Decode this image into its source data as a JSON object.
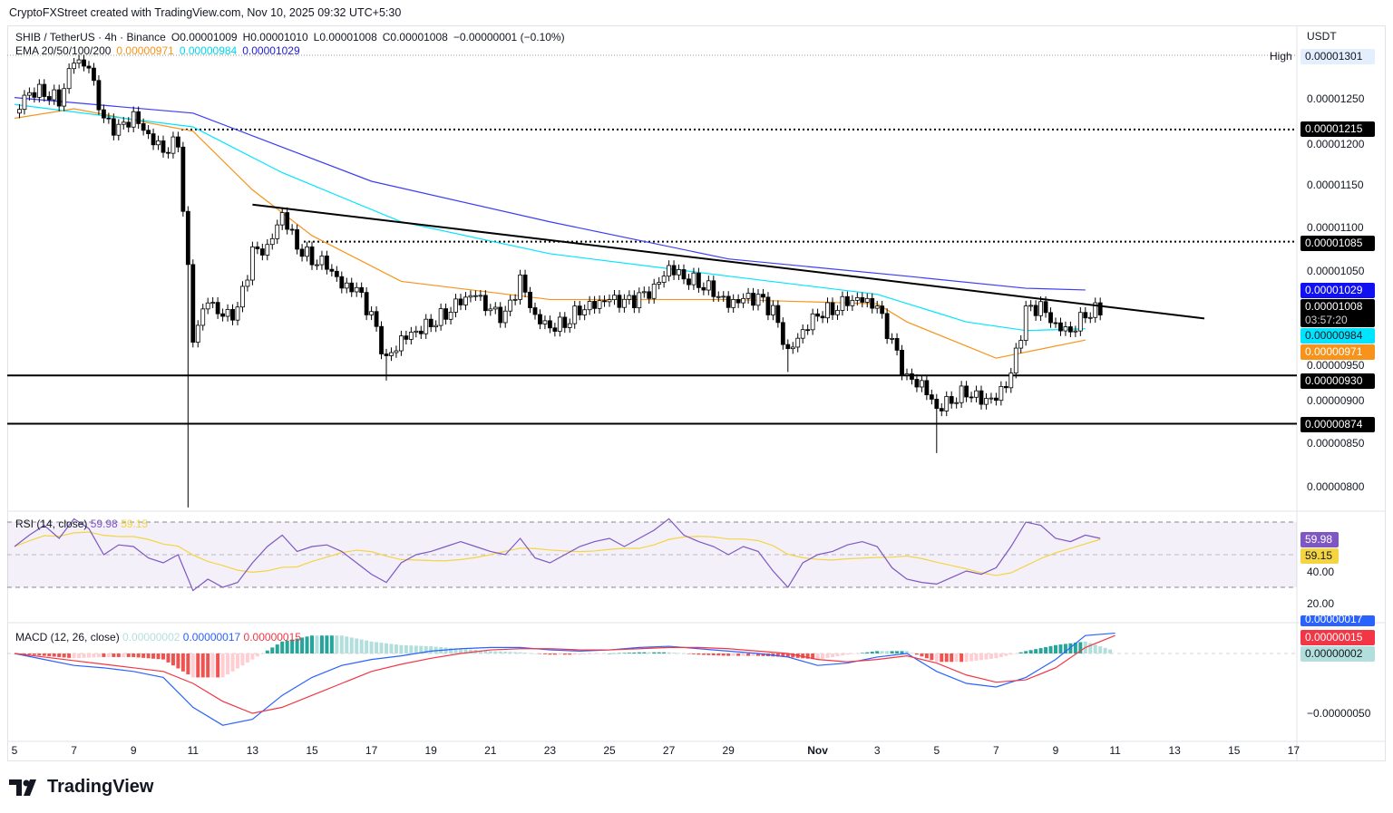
{
  "credit": "CryptoFXStreet created with TradingView.com, Nov 10, 2025 09:32 UTC+5:30",
  "legend": {
    "symbol": "SHIB / TetherUS · 4h · Binance",
    "open": "O0.00001009",
    "high": "H0.00001010",
    "low": "L0.00001008",
    "close": "C0.00001008",
    "change": "−0.00000001 (−0.10%)",
    "ema_label": "EMA 20/50/100/200",
    "ema50": "0.00000971",
    "ema100": "0.00000984",
    "ema200": "0.00001029"
  },
  "currency": "USDT",
  "high_label": "High",
  "rsi_legend": {
    "label": "RSI (14, close)",
    "value": "59.98",
    "ma": "59.15"
  },
  "macd_legend": {
    "label": "MACD (12, 26, close)",
    "hist": "0.00000002",
    "macd": "0.00000017",
    "signal": "0.00000015"
  },
  "price_ticks": [
    "0.00001250",
    "0.00001200",
    "0.00001150",
    "0.00001100",
    "0.00001050",
    "0.00000950",
    "0.00000900",
    "0.00000850",
    "0.00000800"
  ],
  "badges": {
    "high": "0.00001301",
    "r1": "0.00001215",
    "r2": "0.00001085",
    "ema200": "0.00001029",
    "last": "0.00001008",
    "countdown": "03:57:20",
    "ema100": "0.00000984",
    "ema50": "0.00000971",
    "s1": "0.00000930",
    "s2": "0.00000874"
  },
  "rsi_ticks": [
    "40.00",
    "20.00"
  ],
  "rsi_badges": {
    "rsi": "59.98",
    "ma": "59.15"
  },
  "macd_ticks": {
    "macd": "0.00000017",
    "signal": "0.00000015",
    "hist": "0.00000002",
    "low": "−0.00000050"
  },
  "time_labels": [
    "5",
    "7",
    "9",
    "11",
    "13",
    "15",
    "17",
    "19",
    "21",
    "23",
    "25",
    "27",
    "29",
    "Nov",
    "3",
    "5",
    "7",
    "9",
    "11",
    "13",
    "15",
    "17"
  ],
  "logo": "TradingView",
  "colors": {
    "ema50": "#f7931a",
    "ema100": "#00e5ff",
    "ema200": "#3d3df5",
    "rsi": "#7e57c2",
    "rsi_ma": "#f5d442",
    "macd": "#2962ff",
    "signal": "#f23645",
    "hist_up": "#26a69a",
    "hist_down": "#ef5350"
  },
  "chart_data": {
    "type": "candlestick",
    "symbol": "SHIB/USDT",
    "interval": "4h",
    "x_start": "2025-10-05",
    "x_step_hours": 12,
    "closes": [
      1.234e-05,
      1.26e-05,
      1.26e-05,
      1.25e-05,
      1.297e-05,
      1.286e-05,
      1.223e-05,
      1.213e-05,
      1.229e-05,
      1.208e-05,
      1.192e-05,
      1.202e-05,
      9.76e-06,
      1.018e-05,
      9.97e-06,
      1.003e-05,
      1.071e-05,
      1.076e-05,
      1.118e-05,
      1.081e-05,
      1.066e-05,
      1.06e-05,
      1.034e-05,
      1.029e-05,
      9.97e-06,
      9.45e-06,
      9.71e-06,
      9.82e-06,
      9.92e-06,
      1.003e-05,
      1.018e-05,
      1.024e-05,
      1.003e-05,
      9.97e-06,
      1.039e-05,
      9.97e-06,
      9.87e-06,
      9.92e-06,
      1.008e-05,
      1.013e-05,
      1.018e-05,
      1.013e-05,
      1.018e-05,
      1.029e-05,
      1.055e-05,
      1.045e-05,
      1.039e-05,
      1.029e-05,
      1.013e-05,
      1.018e-05,
      1.018e-05,
      1.003e-05,
      9.55e-06,
      9.82e-06,
      1.003e-05,
      1.008e-05,
      1.018e-05,
      1.018e-05,
      1.008e-05,
      9.66e-06,
      9.24e-06,
      9.19e-06,
      8.92e-06,
      9.03e-06,
      9.13e-06,
      9.03e-06,
      9.03e-06,
      9.29e-06,
      1.003e-05,
      1.008e-05,
      9.87e-06,
      9.82e-06,
      1.003e-05,
      1.008e-05
    ],
    "notable_lows": [
      {
        "date": "2025-10-10 20:00",
        "low": 7.77e-06
      },
      {
        "date": "2025-10-17 12:00",
        "low": 9.24e-06
      },
      {
        "date": "2025-10-31 00:00",
        "low": 9.34e-06
      },
      {
        "date": "2025-11-05 00:00",
        "low": 8.4e-06
      }
    ],
    "ema": [
      {
        "name": "EMA 50",
        "color": "#f7931a",
        "points": [
          [
            "2025-10-05",
            1.228e-05
          ],
          [
            "2025-10-07",
            1.239e-05
          ],
          [
            "2025-10-11",
            1.213e-05
          ],
          [
            "2025-10-13",
            1.145e-05
          ],
          [
            "2025-10-15",
            1.092e-05
          ],
          [
            "2025-10-18",
            1.039e-05
          ],
          [
            "2025-10-23",
            1.018e-05
          ],
          [
            "2025-10-29",
            1.018e-05
          ],
          [
            "2025-11-03",
            1.013e-05
          ],
          [
            "2025-11-04",
            9.92e-06
          ],
          [
            "2025-11-07",
            9.5e-06
          ],
          [
            "2025-11-10",
            9.71e-06
          ]
        ]
      },
      {
        "name": "EMA 100",
        "color": "#00e5ff",
        "points": [
          [
            "2025-10-05",
            1.244e-05
          ],
          [
            "2025-10-11",
            1.218e-05
          ],
          [
            "2025-10-14",
            1.165e-05
          ],
          [
            "2025-10-18",
            1.108e-05
          ],
          [
            "2025-10-23",
            1.071e-05
          ],
          [
            "2025-10-29",
            1.045e-05
          ],
          [
            "2025-11-03",
            1.024e-05
          ],
          [
            "2025-11-06",
            9.92e-06
          ],
          [
            "2025-11-08",
            9.82e-06
          ],
          [
            "2025-11-10",
            9.84e-06
          ]
        ]
      },
      {
        "name": "EMA 200",
        "color": "#3d3df5",
        "points": [
          [
            "2025-10-05",
            1.252e-05
          ],
          [
            "2025-10-11",
            1.234e-05
          ],
          [
            "2025-10-17",
            1.155e-05
          ],
          [
            "2025-10-23",
            1.108e-05
          ],
          [
            "2025-10-29",
            1.065e-05
          ],
          [
            "2025-11-04",
            1.045e-05
          ],
          [
            "2025-11-08",
            1.031e-05
          ],
          [
            "2025-11-10",
            1.029e-05
          ]
        ]
      }
    ],
    "levels": {
      "dotted": [
        1.301e-05,
        1.215e-05,
        1.085e-05
      ],
      "solid": [
        9.3e-06,
        8.74e-06
      ]
    },
    "trendline": [
      [
        "2025-10-13",
        1.128e-05
      ],
      [
        "2025-11-14",
        9.96e-06
      ]
    ],
    "price_range": [
      7.65e-06,
      1.325e-05
    ],
    "rsi": {
      "levels": [
        30,
        50,
        70
      ],
      "range": [
        10,
        85
      ],
      "values": [
        55,
        62,
        68,
        60,
        72,
        66,
        50,
        56,
        55,
        48,
        45,
        50,
        28,
        35,
        30,
        33,
        45,
        55,
        62,
        52,
        55,
        56,
        52,
        45,
        38,
        33,
        45,
        50,
        52,
        55,
        58,
        55,
        52,
        50,
        60,
        48,
        45,
        50,
        55,
        58,
        60,
        55,
        60,
        65,
        72,
        62,
        58,
        55,
        50,
        55,
        52,
        40,
        30,
        45,
        50,
        52,
        56,
        58,
        55,
        42,
        35,
        33,
        32,
        36,
        40,
        38,
        42,
        55,
        70,
        68,
        60,
        58,
        62,
        60
      ]
    },
    "macd": {
      "step_hours": 24,
      "macd": [
        0,
        -5e-09,
        -1e-08,
        -1.2e-08,
        -1.5e-08,
        -2e-08,
        -4.5e-08,
        -6e-08,
        -5.5e-08,
        -3.5e-08,
        -2e-08,
        -1e-08,
        -5e-09,
        -2e-09,
        2e-09,
        4e-09,
        5e-09,
        5e-09,
        3e-09,
        2e-09,
        3e-09,
        5e-09,
        6e-09,
        4e-09,
        2e-09,
        0,
        -3e-09,
        -1e-08,
        -8e-09,
        -3e-09,
        0,
        -1.5e-08,
        -2.5e-08,
        -2.8e-08,
        -2e-08,
        -5e-09,
        1.5e-08,
        1.7e-08
      ],
      "signal": [
        0,
        -3e-09,
        -6e-09,
        -9e-09,
        -1.2e-08,
        -1.5e-08,
        -2.5e-08,
        -4e-08,
        -5e-08,
        -4.5e-08,
        -3.5e-08,
        -2.5e-08,
        -1.5e-08,
        -9e-09,
        -4e-09,
        0,
        3e-09,
        4e-09,
        4e-09,
        3e-09,
        3e-09,
        4e-09,
        5e-09,
        5e-09,
        4e-09,
        2e-09,
        0,
        -5e-09,
        -7e-09,
        -5e-09,
        -2e-09,
        -8e-09,
        -1.8e-08,
        -2.4e-08,
        -2.2e-08,
        -1.2e-08,
        5e-09,
        1.5e-08
      ],
      "range": [
        -7e-08,
        2e-08
      ]
    }
  }
}
